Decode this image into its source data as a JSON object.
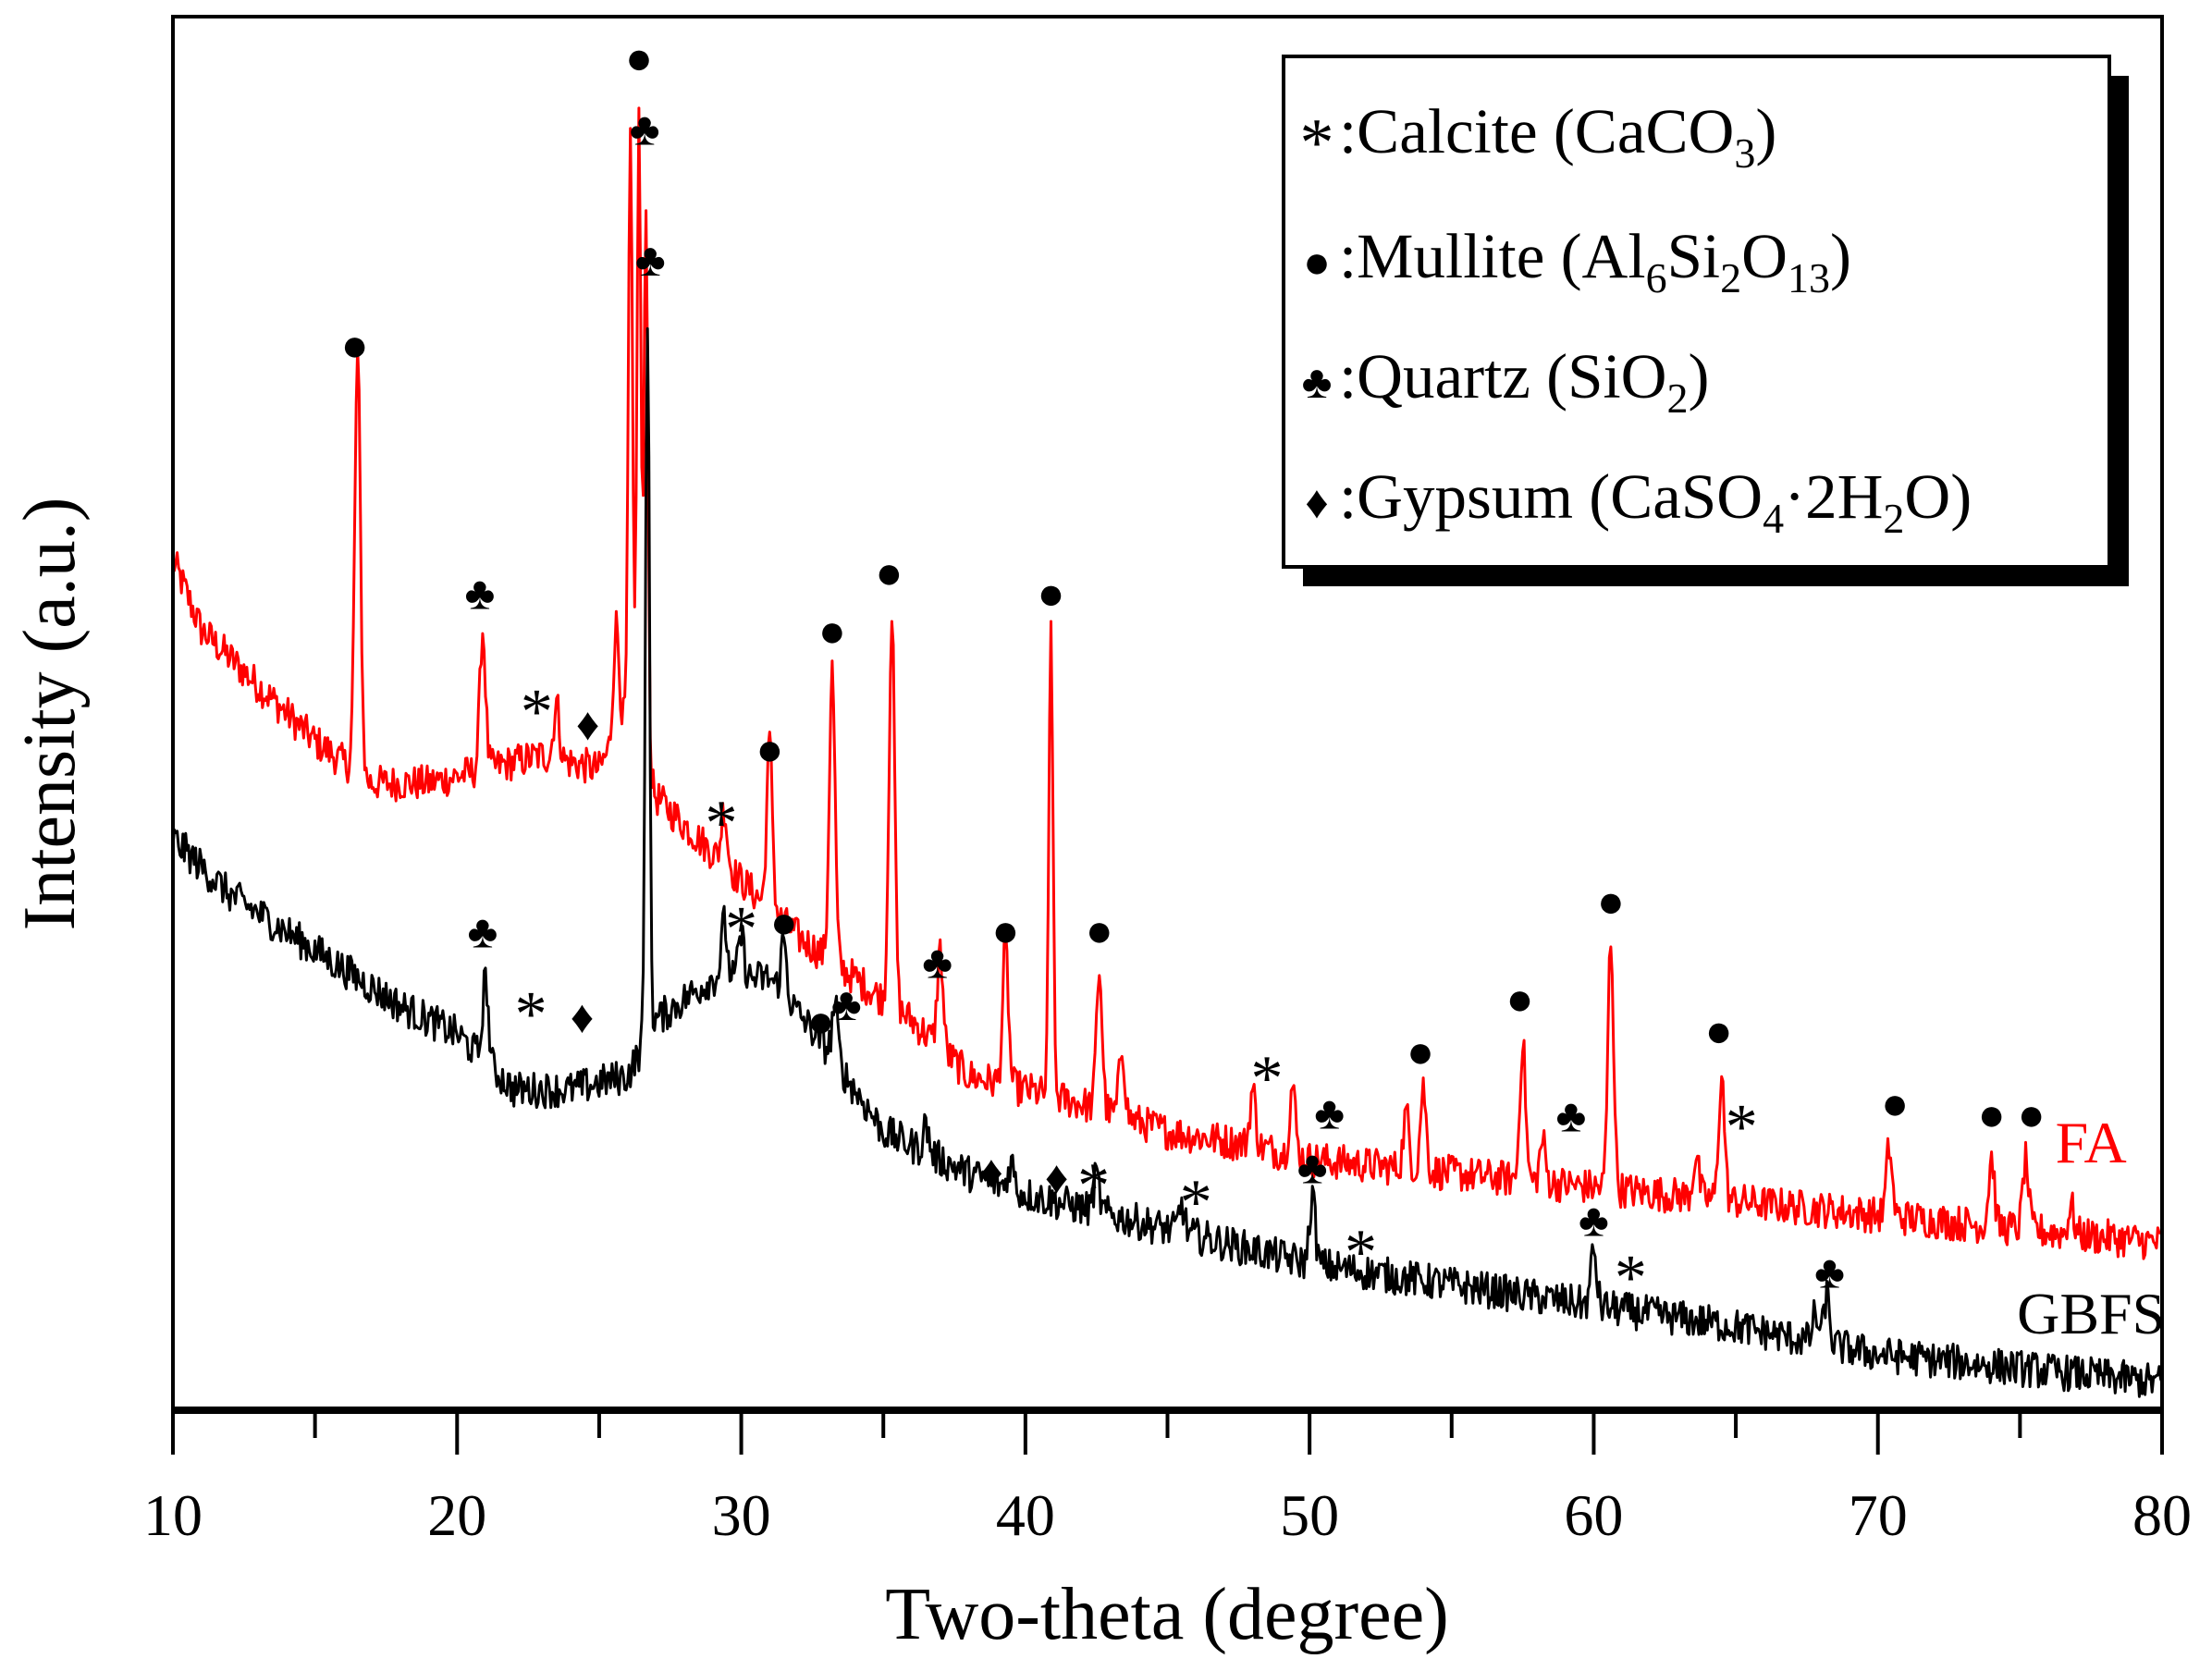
{
  "chart_data": {
    "type": "line",
    "xlabel": "Two-theta (degree)",
    "ylabel": "Intensity (a.u.)",
    "xlim": [
      10,
      80
    ],
    "ylim": [
      0,
      100
    ],
    "xticks": [
      10,
      20,
      30,
      40,
      50,
      60,
      70,
      80
    ],
    "grid": false,
    "legend_placement": "top-right",
    "series": [
      {
        "name": "FA",
        "color": "#ff0000",
        "baseline": [
          [
            10,
            61
          ],
          [
            11,
            56
          ],
          [
            13,
            52
          ],
          [
            15,
            48
          ],
          [
            17,
            45
          ],
          [
            19,
            45
          ],
          [
            21,
            46
          ],
          [
            23,
            47
          ],
          [
            25,
            46
          ],
          [
            26,
            50
          ],
          [
            27,
            44
          ],
          [
            28,
            42
          ],
          [
            30,
            38
          ],
          [
            32,
            34
          ],
          [
            34,
            31
          ],
          [
            36,
            28
          ],
          [
            38,
            24
          ],
          [
            40,
            23
          ],
          [
            42,
            22
          ],
          [
            45,
            20
          ],
          [
            48,
            19
          ],
          [
            50,
            18
          ],
          [
            55,
            17
          ],
          [
            60,
            16
          ],
          [
            65,
            15
          ],
          [
            70,
            14
          ],
          [
            75,
            13
          ],
          [
            80,
            12
          ]
        ],
        "peaks": [
          [
            16.5,
            30
          ],
          [
            20.9,
            10
          ],
          [
            23.5,
            4
          ],
          [
            25.6,
            8
          ],
          [
            26.1,
            42
          ],
          [
            26.4,
            45
          ],
          [
            26.65,
            40
          ],
          [
            29.4,
            4
          ],
          [
            31.0,
            12
          ],
          [
            33.2,
            21
          ],
          [
            35.3,
            28
          ],
          [
            37.0,
            7
          ],
          [
            39.3,
            10
          ],
          [
            40.9,
            34
          ],
          [
            42.6,
            10
          ],
          [
            43.4,
            5
          ],
          [
            48.0,
            4
          ],
          [
            49.4,
            5
          ],
          [
            53.4,
            4
          ],
          [
            54.0,
            6
          ],
          [
            57.5,
            10
          ],
          [
            58.2,
            3
          ],
          [
            60.6,
            18
          ],
          [
            63.6,
            3
          ],
          [
            64.5,
            9
          ],
          [
            70.4,
            5
          ],
          [
            74.0,
            5
          ],
          [
            75.2,
            5
          ],
          [
            76.8,
            2
          ]
        ]
      },
      {
        "name": "GBFS",
        "color": "#000000",
        "baseline": [
          [
            10,
            41
          ],
          [
            12,
            37
          ],
          [
            15,
            33
          ],
          [
            18,
            29
          ],
          [
            20,
            27
          ],
          [
            22,
            23
          ],
          [
            24,
            23
          ],
          [
            26,
            24
          ],
          [
            27,
            28
          ],
          [
            29,
            31
          ],
          [
            31,
            31
          ],
          [
            33,
            26
          ],
          [
            35,
            20
          ],
          [
            38,
            17
          ],
          [
            40,
            15.5
          ],
          [
            45,
            13
          ],
          [
            50,
            10.5
          ],
          [
            55,
            9
          ],
          [
            60,
            7.5
          ],
          [
            65,
            6
          ],
          [
            70,
            4
          ],
          [
            75,
            3
          ],
          [
            80,
            2
          ]
        ],
        "peaks": [
          [
            21.0,
            6
          ],
          [
            26.7,
            52
          ],
          [
            29.4,
            4
          ],
          [
            30.0,
            3
          ],
          [
            31.5,
            4
          ],
          [
            33.3,
            4
          ],
          [
            36.5,
            2
          ],
          [
            39.5,
            2
          ],
          [
            42.5,
            2.5
          ],
          [
            45.5,
            2
          ],
          [
            50.1,
            5
          ],
          [
            60.0,
            4
          ],
          [
            67.8,
            2
          ],
          [
            68.2,
            3.5
          ]
        ]
      }
    ],
    "series_labels": [
      {
        "text": "FA",
        "color": "#ff0000",
        "x": 77.5,
        "y": 17.8
      },
      {
        "text": "GBFS",
        "color": "#000000",
        "x": 77.5,
        "y": 5.5
      }
    ],
    "symbols": {
      "calcite": "*",
      "mullite": "●",
      "quartz": "♣",
      "gypsum": "♦"
    },
    "annotations": [
      {
        "phase": "mullite",
        "x": 26.4,
        "y": 97.1
      },
      {
        "phase": "quartz",
        "x": 26.6,
        "y": 92
      },
      {
        "phase": "quartz",
        "x": 26.8,
        "y": 82.6
      },
      {
        "phase": "mullite",
        "x": 16.4,
        "y": 76.5
      },
      {
        "phase": "quartz",
        "x": 20.8,
        "y": 58.7
      },
      {
        "phase": "calcite",
        "x": 22.8,
        "y": 51
      },
      {
        "phase": "gypsum",
        "x": 24.6,
        "y": 49.3
      },
      {
        "phase": "calcite",
        "x": 29.3,
        "y": 43
      },
      {
        "phase": "mullite",
        "x": 31.0,
        "y": 47.5
      },
      {
        "phase": "mullite",
        "x": 33.2,
        "y": 56
      },
      {
        "phase": "mullite",
        "x": 35.2,
        "y": 60.2
      },
      {
        "phase": "mullite",
        "x": 40.9,
        "y": 58.7
      },
      {
        "phase": "quartz",
        "x": 36.9,
        "y": 32.2
      },
      {
        "phase": "mullite",
        "x": 39.3,
        "y": 34.5
      },
      {
        "phase": "mullite",
        "x": 42.6,
        "y": 34.5
      },
      {
        "phase": "calcite",
        "x": 48.5,
        "y": 24.7
      },
      {
        "phase": "quartz",
        "x": 50.7,
        "y": 21.4
      },
      {
        "phase": "mullite",
        "x": 53.9,
        "y": 25.8
      },
      {
        "phase": "mullite",
        "x": 57.4,
        "y": 29.6
      },
      {
        "phase": "mullite",
        "x": 60.6,
        "y": 36.6
      },
      {
        "phase": "quartz",
        "x": 59.2,
        "y": 21.2
      },
      {
        "phase": "mullite",
        "x": 64.4,
        "y": 27.3
      },
      {
        "phase": "calcite",
        "x": 65.2,
        "y": 21.2
      },
      {
        "phase": "mullite",
        "x": 70.6,
        "y": 22.1
      },
      {
        "phase": "mullite",
        "x": 74.0,
        "y": 21.3
      },
      {
        "phase": "mullite",
        "x": 75.4,
        "y": 21.3
      },
      {
        "phase": "quartz",
        "x": 20.9,
        "y": 34.4
      },
      {
        "phase": "calcite",
        "x": 22.6,
        "y": 29.3
      },
      {
        "phase": "gypsum",
        "x": 24.4,
        "y": 28.3
      },
      {
        "phase": "calcite",
        "x": 30.0,
        "y": 35.4
      },
      {
        "phase": "mullite",
        "x": 31.5,
        "y": 35.1
      },
      {
        "phase": "mullite",
        "x": 32.8,
        "y": 28
      },
      {
        "phase": "quartz",
        "x": 33.7,
        "y": 29.2
      },
      {
        "phase": "gypsum",
        "x": 38.8,
        "y": 17.2
      },
      {
        "phase": "gypsum",
        "x": 41.1,
        "y": 16.8
      },
      {
        "phase": "calcite",
        "x": 42.4,
        "y": 17
      },
      {
        "phase": "calcite",
        "x": 46.0,
        "y": 15.8
      },
      {
        "phase": "quartz",
        "x": 50.1,
        "y": 17.5
      },
      {
        "phase": "calcite",
        "x": 51.8,
        "y": 12.2
      },
      {
        "phase": "quartz",
        "x": 60.0,
        "y": 13.7
      },
      {
        "phase": "calcite",
        "x": 61.3,
        "y": 10.4
      },
      {
        "phase": "quartz",
        "x": 68.3,
        "y": 10
      }
    ],
    "legend": [
      {
        "phase": "calcite",
        "parts": [
          {
            "t": ":Calcite (CaCO"
          },
          {
            "sub": "3"
          },
          {
            "t": ")"
          }
        ]
      },
      {
        "phase": "mullite",
        "parts": [
          {
            "t": ":Mullite (Al"
          },
          {
            "sub": "6"
          },
          {
            "t": "Si"
          },
          {
            "sub": "2"
          },
          {
            "t": "O"
          },
          {
            "sub": "13"
          },
          {
            "t": ")"
          }
        ]
      },
      {
        "phase": "quartz",
        "parts": [
          {
            "t": ":Quartz (SiO"
          },
          {
            "sub": "2"
          },
          {
            "t": ")"
          }
        ]
      },
      {
        "phase": "gypsum",
        "parts": [
          {
            "t": ":Gypsum (CaSO"
          },
          {
            "sub": "4"
          },
          {
            "t": "·2H"
          },
          {
            "sub": "2"
          },
          {
            "t": "O)"
          }
        ]
      }
    ]
  }
}
